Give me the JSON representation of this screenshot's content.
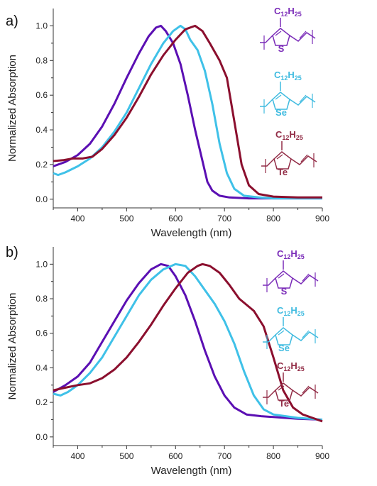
{
  "chart_data": [
    {
      "type": "line",
      "panel_label": "a)",
      "xlabel": "Wavelength (nm)",
      "ylabel": "Normalized Absorption",
      "xlim": [
        350,
        900
      ],
      "ylim": [
        -0.05,
        1.1
      ],
      "x_ticks": [
        400,
        500,
        600,
        700,
        800,
        900
      ],
      "y_ticks": [
        0.0,
        0.2,
        0.4,
        0.6,
        0.8,
        1.0
      ],
      "grid": false,
      "series": [
        {
          "color": "#5b0fb3",
          "points": [
            [
              350,
              0.19
            ],
            [
              375,
              0.215
            ],
            [
              400,
              0.255
            ],
            [
              425,
              0.32
            ],
            [
              450,
              0.42
            ],
            [
              475,
              0.55
            ],
            [
              500,
              0.7
            ],
            [
              525,
              0.84
            ],
            [
              545,
              0.94
            ],
            [
              560,
              0.99
            ],
            [
              570,
              1.0
            ],
            [
              580,
              0.97
            ],
            [
              595,
              0.9
            ],
            [
              610,
              0.78
            ],
            [
              625,
              0.6
            ],
            [
              640,
              0.4
            ],
            [
              655,
              0.22
            ],
            [
              665,
              0.1
            ],
            [
              675,
              0.05
            ],
            [
              690,
              0.02
            ],
            [
              710,
              0.01
            ],
            [
              750,
              0.005
            ],
            [
              800,
              0.005
            ],
            [
              900,
              0.005
            ]
          ]
        },
        {
          "color": "#3fc1e8",
          "points": [
            [
              350,
              0.15
            ],
            [
              360,
              0.14
            ],
            [
              375,
              0.155
            ],
            [
              400,
              0.19
            ],
            [
              425,
              0.235
            ],
            [
              450,
              0.3
            ],
            [
              475,
              0.39
            ],
            [
              500,
              0.5
            ],
            [
              525,
              0.64
            ],
            [
              550,
              0.78
            ],
            [
              575,
              0.9
            ],
            [
              595,
              0.97
            ],
            [
              610,
              1.0
            ],
            [
              620,
              0.98
            ],
            [
              630,
              0.92
            ],
            [
              645,
              0.86
            ],
            [
              660,
              0.74
            ],
            [
              675,
              0.55
            ],
            [
              690,
              0.32
            ],
            [
              705,
              0.15
            ],
            [
              720,
              0.06
            ],
            [
              740,
              0.02
            ],
            [
              770,
              0.01
            ],
            [
              800,
              0.005
            ],
            [
              900,
              0.005
            ]
          ]
        },
        {
          "color": "#8b0f2e",
          "points": [
            [
              350,
              0.22
            ],
            [
              370,
              0.225
            ],
            [
              390,
              0.235
            ],
            [
              410,
              0.235
            ],
            [
              430,
              0.245
            ],
            [
              450,
              0.29
            ],
            [
              475,
              0.37
            ],
            [
              500,
              0.47
            ],
            [
              525,
              0.59
            ],
            [
              550,
              0.72
            ],
            [
              575,
              0.83
            ],
            [
              600,
              0.92
            ],
            [
              620,
              0.98
            ],
            [
              640,
              1.0
            ],
            [
              655,
              0.97
            ],
            [
              670,
              0.9
            ],
            [
              690,
              0.8
            ],
            [
              705,
              0.7
            ],
            [
              720,
              0.45
            ],
            [
              735,
              0.2
            ],
            [
              750,
              0.08
            ],
            [
              770,
              0.03
            ],
            [
              800,
              0.015
            ],
            [
              850,
              0.01
            ],
            [
              900,
              0.01
            ]
          ]
        }
      ]
    },
    {
      "type": "line",
      "panel_label": "b)",
      "xlabel": "Wavelength (nm)",
      "ylabel": "Normalized Absorption",
      "xlim": [
        350,
        900
      ],
      "ylim": [
        -0.05,
        1.1
      ],
      "x_ticks": [
        400,
        500,
        600,
        700,
        800,
        900
      ],
      "y_ticks": [
        0.0,
        0.2,
        0.4,
        0.6,
        0.8,
        1.0
      ],
      "grid": false,
      "series": [
        {
          "color": "#5b0fb3",
          "points": [
            [
              350,
              0.26
            ],
            [
              375,
              0.3
            ],
            [
              400,
              0.35
            ],
            [
              425,
              0.43
            ],
            [
              450,
              0.55
            ],
            [
              475,
              0.67
            ],
            [
              500,
              0.79
            ],
            [
              525,
              0.89
            ],
            [
              550,
              0.97
            ],
            [
              570,
              1.0
            ],
            [
              585,
              0.99
            ],
            [
              600,
              0.93
            ],
            [
              620,
              0.82
            ],
            [
              640,
              0.67
            ],
            [
              660,
              0.5
            ],
            [
              680,
              0.35
            ],
            [
              700,
              0.24
            ],
            [
              720,
              0.17
            ],
            [
              745,
              0.13
            ],
            [
              775,
              0.12
            ],
            [
              800,
              0.115
            ],
            [
              850,
              0.105
            ],
            [
              900,
              0.1
            ]
          ]
        },
        {
          "color": "#3fc1e8",
          "points": [
            [
              350,
              0.25
            ],
            [
              365,
              0.24
            ],
            [
              380,
              0.26
            ],
            [
              400,
              0.3
            ],
            [
              425,
              0.37
            ],
            [
              450,
              0.46
            ],
            [
              475,
              0.58
            ],
            [
              500,
              0.7
            ],
            [
              525,
              0.82
            ],
            [
              550,
              0.91
            ],
            [
              575,
              0.97
            ],
            [
              600,
              1.0
            ],
            [
              620,
              0.99
            ],
            [
              640,
              0.93
            ],
            [
              660,
              0.85
            ],
            [
              680,
              0.77
            ],
            [
              700,
              0.67
            ],
            [
              720,
              0.54
            ],
            [
              740,
              0.38
            ],
            [
              760,
              0.24
            ],
            [
              780,
              0.16
            ],
            [
              800,
              0.13
            ],
            [
              850,
              0.11
            ],
            [
              900,
              0.1
            ]
          ]
        },
        {
          "color": "#8b0f2e",
          "points": [
            [
              350,
              0.27
            ],
            [
              375,
              0.285
            ],
            [
              400,
              0.3
            ],
            [
              425,
              0.31
            ],
            [
              450,
              0.34
            ],
            [
              475,
              0.39
            ],
            [
              500,
              0.46
            ],
            [
              525,
              0.55
            ],
            [
              550,
              0.65
            ],
            [
              575,
              0.76
            ],
            [
              600,
              0.86
            ],
            [
              625,
              0.95
            ],
            [
              645,
              0.99
            ],
            [
              655,
              1.0
            ],
            [
              670,
              0.99
            ],
            [
              690,
              0.95
            ],
            [
              710,
              0.88
            ],
            [
              730,
              0.8
            ],
            [
              760,
              0.73
            ],
            [
              780,
              0.64
            ],
            [
              800,
              0.46
            ],
            [
              820,
              0.27
            ],
            [
              840,
              0.17
            ],
            [
              860,
              0.13
            ],
            [
              880,
              0.11
            ],
            [
              900,
              0.09
            ]
          ]
        }
      ]
    }
  ],
  "structures": [
    [
      {
        "color": "#7a2bb8",
        "sub_top": "C",
        "sub_a": "12",
        "sub_b": "H",
        "sub_c": "25",
        "atom": "S"
      },
      {
        "color": "#3fbbe0",
        "sub_top": "C",
        "sub_a": "12",
        "sub_b": "H",
        "sub_c": "25",
        "atom": "Se"
      },
      {
        "color": "#922c46",
        "sub_top": "C",
        "sub_a": "12",
        "sub_b": "H",
        "sub_c": "25",
        "atom": "Te"
      }
    ],
    [
      {
        "color": "#7a2bb8",
        "sub_top": "C",
        "sub_a": "12",
        "sub_b": "H",
        "sub_c": "25",
        "atom": "S"
      },
      {
        "color": "#3fbbe0",
        "sub_top": "C",
        "sub_a": "12",
        "sub_b": "H",
        "sub_c": "25",
        "atom": "Se"
      },
      {
        "color": "#922c46",
        "sub_top": "C",
        "sub_a": "12",
        "sub_b": "H",
        "sub_c": "25",
        "atom": "Te"
      }
    ]
  ]
}
